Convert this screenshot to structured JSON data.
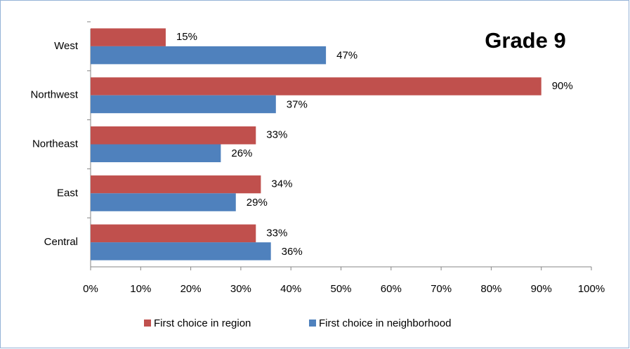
{
  "chart_data": {
    "type": "hbar",
    "title": "Grade 9",
    "categories": [
      "West",
      "Northwest",
      "Northeast",
      "East",
      "Central"
    ],
    "series": [
      {
        "name": "First choice in region",
        "color": "#c0504d",
        "values": [
          15,
          90,
          33,
          34,
          33
        ],
        "value_labels": [
          "15%",
          "90%",
          "33%",
          "34%",
          "33%"
        ]
      },
      {
        "name": "First choice in neighborhood",
        "color": "#4f81bd",
        "values": [
          47,
          37,
          26,
          29,
          36
        ],
        "value_labels": [
          "47%",
          "37%",
          "26%",
          "29%",
          "36%"
        ]
      }
    ],
    "xlim": [
      0,
      100
    ],
    "xticks": [
      {
        "value": 0,
        "label": "0%"
      },
      {
        "value": 10,
        "label": "10%"
      },
      {
        "value": 20,
        "label": "20%"
      },
      {
        "value": 30,
        "label": "30%"
      },
      {
        "value": 40,
        "label": "40%"
      },
      {
        "value": 50,
        "label": "50%"
      },
      {
        "value": 60,
        "label": "60%"
      },
      {
        "value": 70,
        "label": "70%"
      },
      {
        "value": 80,
        "label": "80%"
      },
      {
        "value": 90,
        "label": "90%"
      },
      {
        "value": 100,
        "label": "100%"
      }
    ],
    "legend": "bottom"
  }
}
